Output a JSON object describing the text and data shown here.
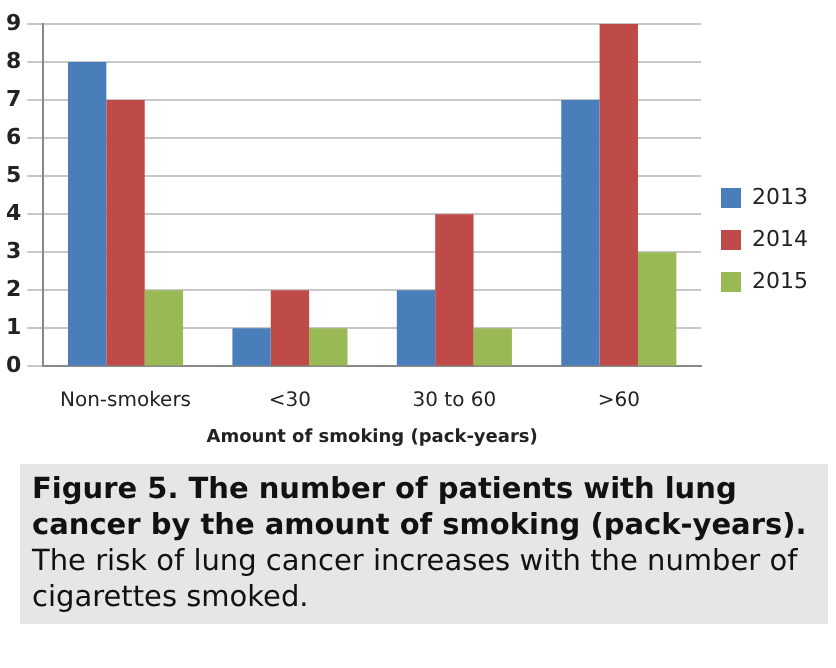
{
  "chart_data": {
    "type": "bar",
    "title": "Figure 5. The number of patients with lung cancer by the amount of smoking (pack-years).",
    "xlabel": "Amount of smoking (pack-years)",
    "categories": [
      "Non-smokers",
      "<30",
      "30 to 60",
      ">60"
    ],
    "series": [
      {
        "name": "2013",
        "color": "#4a7ebb",
        "values": [
          8,
          1,
          2,
          7
        ]
      },
      {
        "name": "2014",
        "color": "#be4b48",
        "values": [
          7,
          2,
          4,
          9
        ]
      },
      {
        "name": "2015",
        "color": "#98b954",
        "values": [
          2,
          1,
          1,
          3
        ]
      }
    ],
    "ylim": [
      0,
      9
    ],
    "yticks": [
      0,
      1,
      2,
      3,
      4,
      5,
      6,
      7,
      8,
      9
    ],
    "grid": "y",
    "legend": "right",
    "annotations": [
      "The risk of lung cancer increases with the number of cigarettes smoked."
    ]
  }
}
